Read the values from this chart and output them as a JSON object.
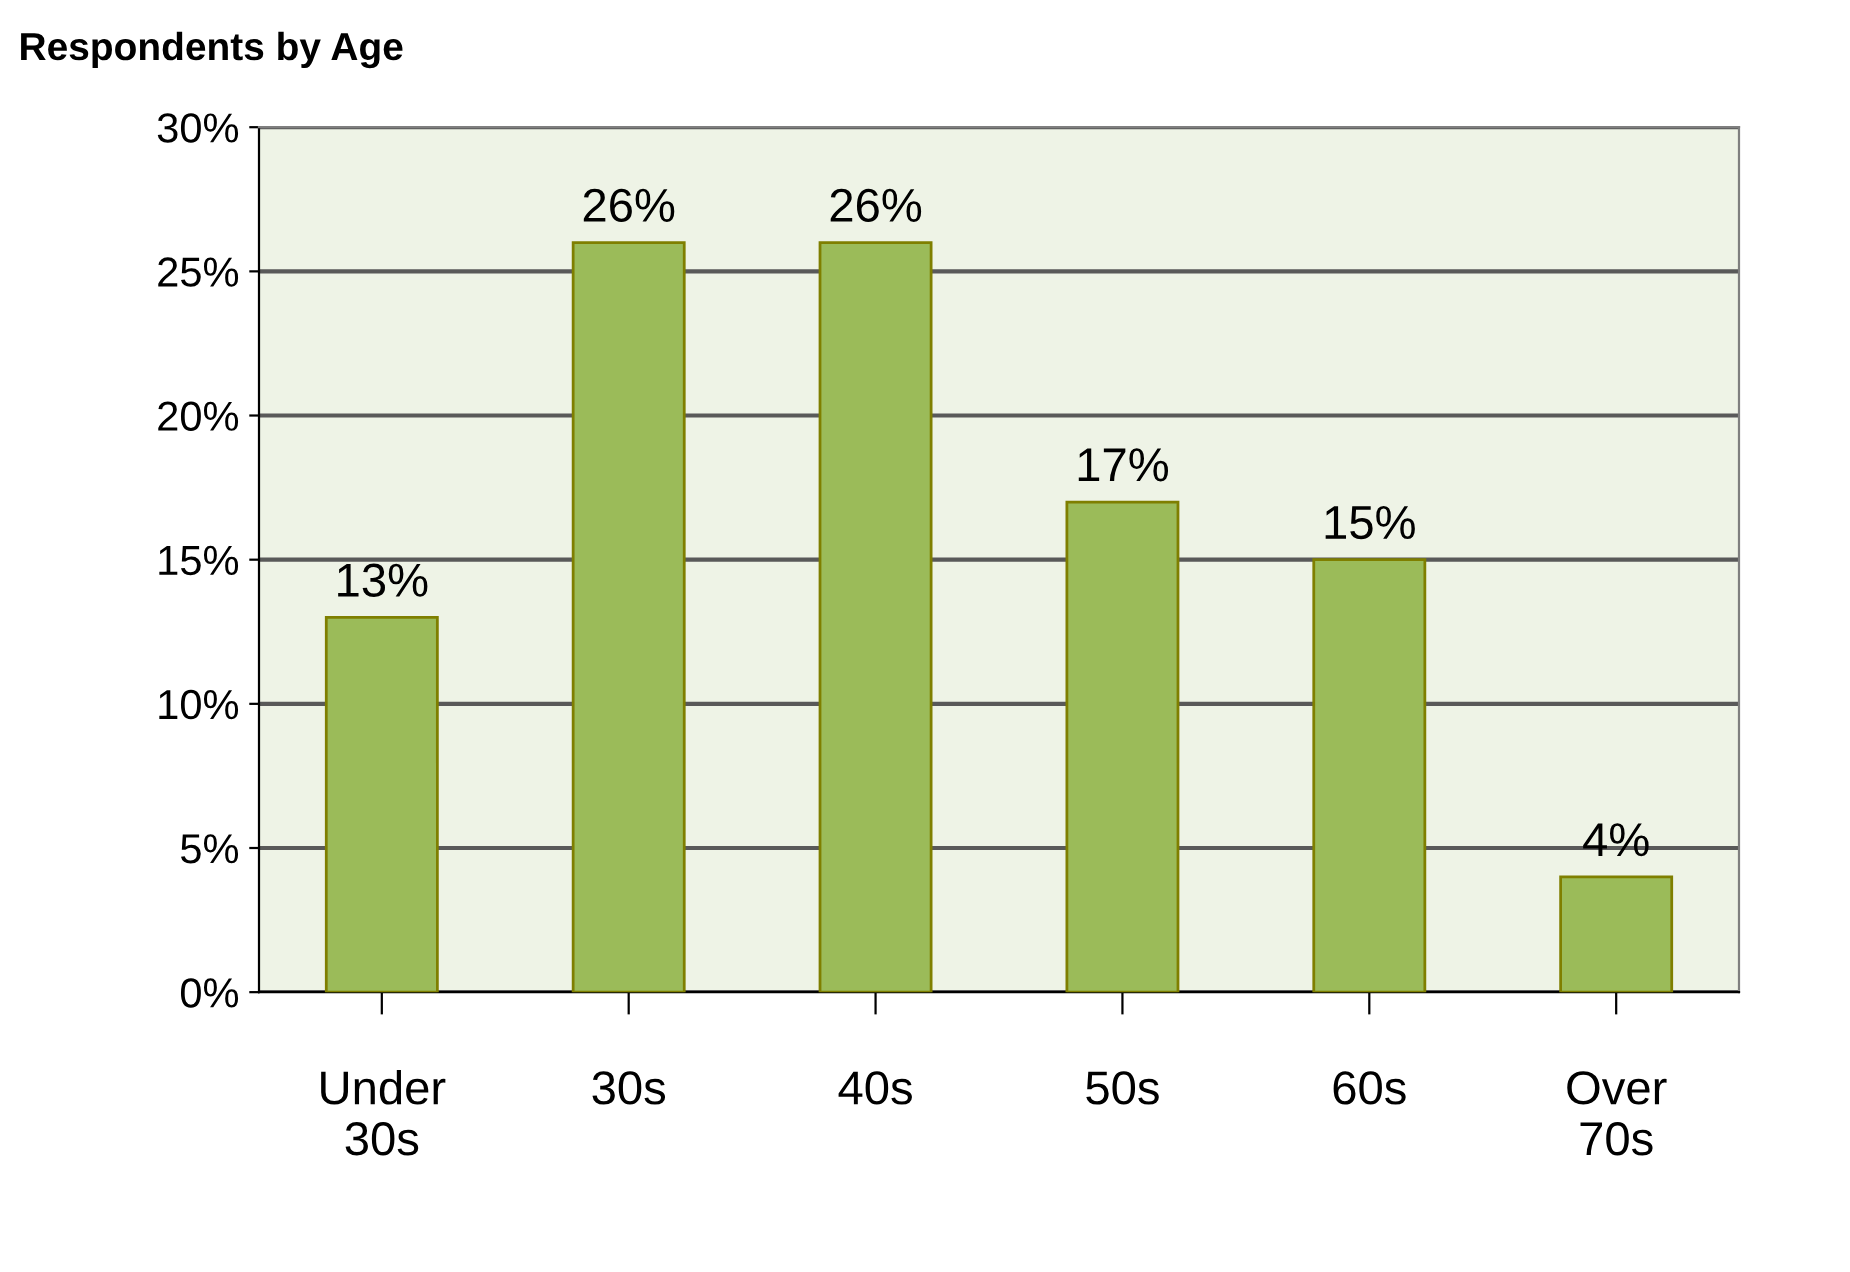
{
  "chart_data": {
    "type": "bar",
    "title": "Respondents by Age",
    "categories": [
      "Under\n30s",
      "30s",
      "40s",
      "50s",
      "60s",
      "Over\n70s"
    ],
    "values": [
      13,
      26,
      26,
      17,
      15,
      4
    ],
    "value_labels": [
      "13%",
      "26%",
      "26%",
      "17%",
      "15%",
      "4%"
    ],
    "color": "#9bbb59",
    "ylim": [
      0,
      30
    ],
    "yticks": [
      {
        "value": 0,
        "label": "0%"
      },
      {
        "value": 5,
        "label": "5%"
      },
      {
        "value": 10,
        "label": "10%"
      },
      {
        "value": 15,
        "label": "15%"
      },
      {
        "value": 20,
        "label": "20%"
      },
      {
        "value": 25,
        "label": "25%"
      },
      {
        "value": 30,
        "label": "30%"
      }
    ],
    "grid": "y",
    "legend": false
  }
}
